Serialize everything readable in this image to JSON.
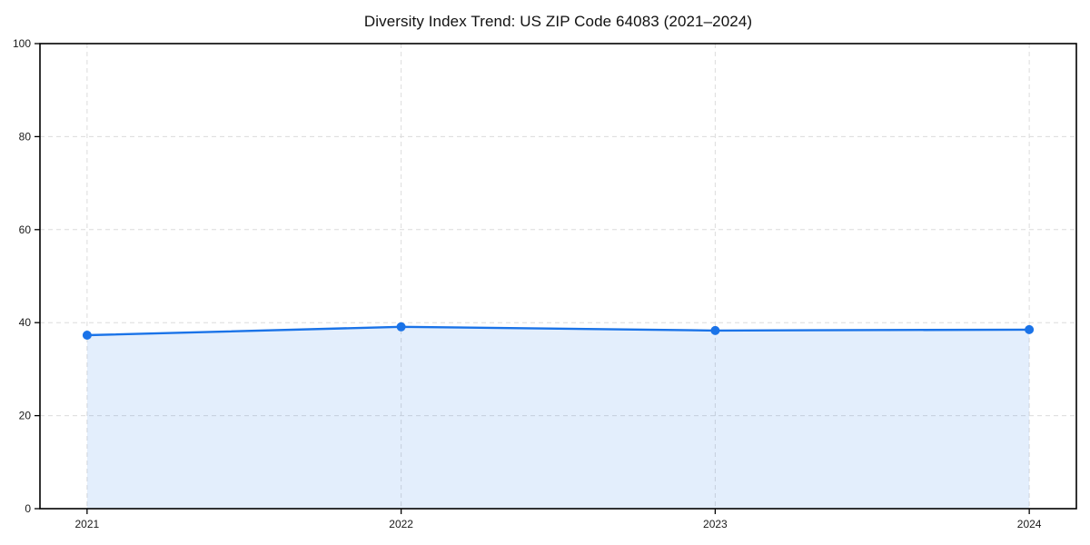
{
  "title": "Diversity Index Trend: US ZIP Code 64083 (2021–2024)",
  "chart_data": {
    "type": "area",
    "title": "Diversity Index Trend: US ZIP Code 64083 (2021–2024)",
    "x": [
      2021,
      2022,
      2023,
      2024
    ],
    "categories": [
      "2021",
      "2022",
      "2023",
      "2024"
    ],
    "series": [
      {
        "name": "Diversity Index",
        "values": [
          37.3,
          39.1,
          38.3,
          38.5
        ]
      }
    ],
    "xlabel": "",
    "ylabel": "",
    "ylim": [
      0,
      100
    ],
    "yticks": [
      0,
      20,
      40,
      60,
      80,
      100
    ],
    "grid": true,
    "grid_style": "dashed",
    "legend_position": "none",
    "line_color": "#1a73e8",
    "marker": "circle",
    "marker_radius": 5,
    "fill_color": "#1a73e8",
    "fill_opacity": 0.12,
    "grid_color": "#dcdcdc",
    "axis_color": "#000000",
    "text_color": "#1a1a1a",
    "background_color": "#ffffff"
  }
}
